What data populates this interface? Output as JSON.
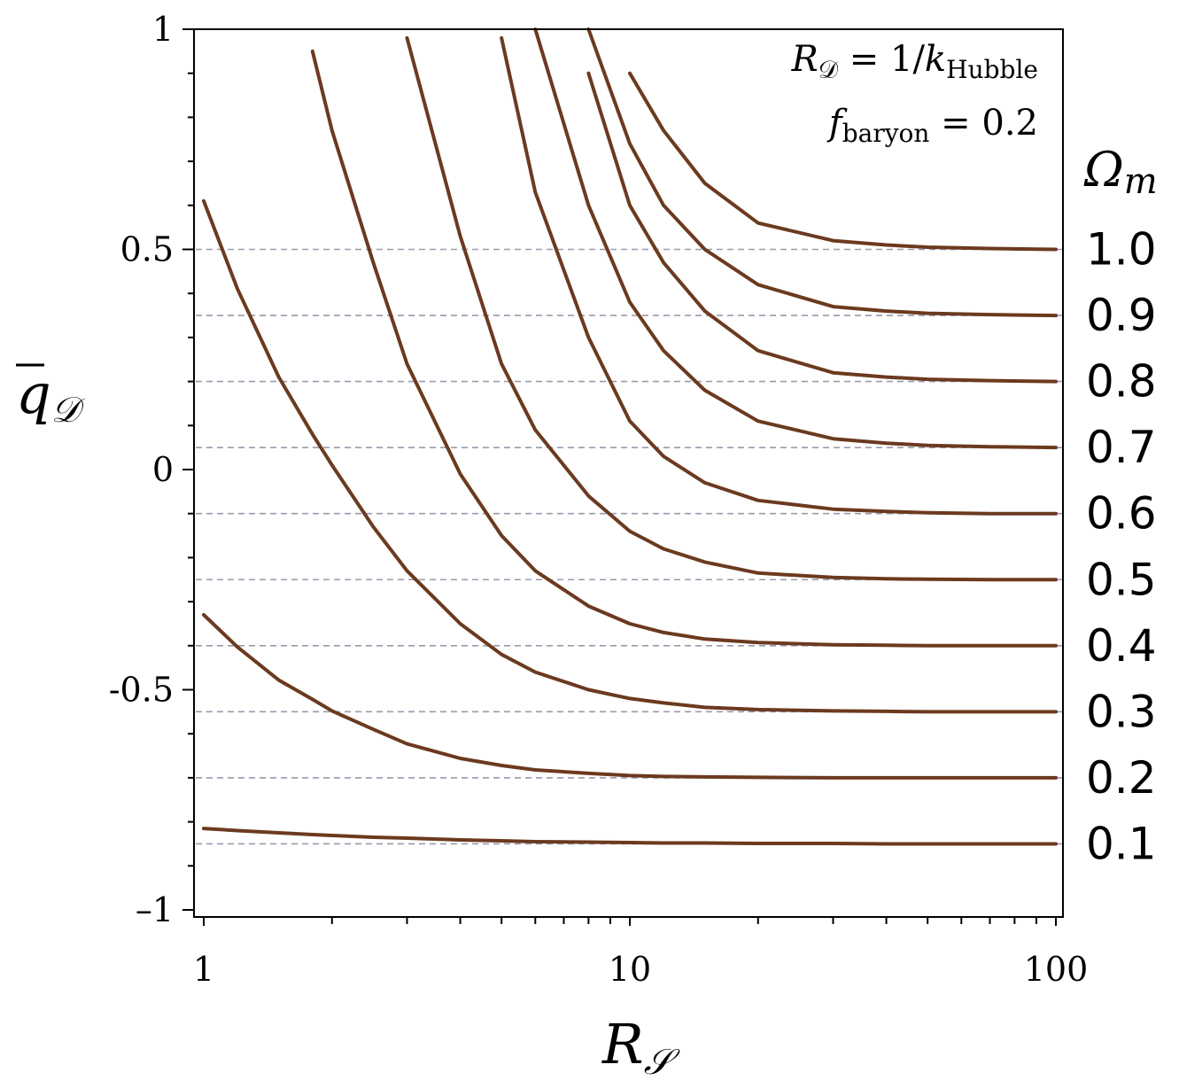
{
  "chart_data": {
    "type": "line",
    "xscale": "log",
    "xlim": [
      1,
      100
    ],
    "ylim": [
      -1,
      1
    ],
    "xlabel": "R_S",
    "ylabel": "q̄_D",
    "x_ticks": [
      "1",
      "10",
      "100"
    ],
    "y_ticks": [
      "1",
      "0.5",
      "0",
      "-0.5",
      "–1"
    ],
    "legend_title": "Ω_m",
    "annotations": {
      "line1": "R_D = 1/k_Hubble",
      "line2": "f_baryon = 0.2"
    },
    "line_color": "#6b3a1f",
    "reference_line_color": "#9a9aae",
    "grid": false,
    "x": [
      1,
      1.2,
      1.5,
      1.8,
      2,
      2.5,
      3,
      4,
      5,
      6,
      8,
      10,
      12,
      15,
      20,
      30,
      40,
      50,
      70,
      100
    ],
    "series": [
      {
        "name": "0.1",
        "asymptote": -0.85,
        "values": [
          -0.815,
          -0.82,
          -0.825,
          -0.829,
          -0.831,
          -0.835,
          -0.837,
          -0.841,
          -0.843,
          -0.845,
          -0.846,
          -0.847,
          -0.848,
          -0.848,
          -0.849,
          -0.849,
          -0.85,
          -0.85,
          -0.85,
          -0.85
        ]
      },
      {
        "name": "0.2",
        "asymptote": -0.7,
        "values": [
          -0.33,
          -0.403,
          -0.478,
          -0.522,
          -0.548,
          -0.59,
          -0.623,
          -0.656,
          -0.672,
          -0.682,
          -0.69,
          -0.695,
          -0.697,
          -0.698,
          -0.699,
          -0.7,
          -0.7,
          -0.7,
          -0.7,
          -0.7
        ]
      },
      {
        "name": "0.3",
        "asymptote": -0.55,
        "values": [
          0.61,
          0.41,
          0.21,
          0.08,
          0.01,
          -0.13,
          -0.23,
          -0.35,
          -0.42,
          -0.46,
          -0.5,
          -0.52,
          -0.53,
          -0.54,
          -0.545,
          -0.548,
          -0.549,
          -0.55,
          -0.55,
          -0.55
        ]
      },
      {
        "name": "0.4",
        "asymptote": -0.4,
        "values": [
          null,
          null,
          null,
          0.95,
          0.77,
          0.47,
          0.24,
          -0.01,
          -0.15,
          -0.23,
          -0.31,
          -0.35,
          -0.37,
          -0.385,
          -0.393,
          -0.398,
          -0.399,
          -0.4,
          -0.4,
          -0.4
        ]
      },
      {
        "name": "0.5",
        "asymptote": -0.25,
        "values": [
          null,
          null,
          null,
          null,
          null,
          null,
          0.98,
          0.53,
          0.24,
          0.09,
          -0.06,
          -0.14,
          -0.18,
          -0.21,
          -0.235,
          -0.245,
          -0.248,
          -0.249,
          -0.25,
          -0.25
        ]
      },
      {
        "name": "0.6",
        "asymptote": -0.1,
        "values": [
          null,
          null,
          null,
          null,
          null,
          null,
          null,
          null,
          0.98,
          0.63,
          0.3,
          0.11,
          0.03,
          -0.03,
          -0.07,
          -0.09,
          -0.095,
          -0.098,
          -0.1,
          -0.1
        ]
      },
      {
        "name": "0.7",
        "asymptote": 0.05,
        "values": [
          null,
          null,
          null,
          null,
          null,
          null,
          null,
          null,
          null,
          1.0,
          0.6,
          0.38,
          0.27,
          0.18,
          0.11,
          0.07,
          0.06,
          0.055,
          0.052,
          0.05
        ]
      },
      {
        "name": "0.8",
        "asymptote": 0.2,
        "values": [
          null,
          null,
          null,
          null,
          null,
          null,
          null,
          null,
          null,
          null,
          0.9,
          0.6,
          0.47,
          0.36,
          0.27,
          0.22,
          0.21,
          0.205,
          0.202,
          0.2
        ]
      },
      {
        "name": "0.9",
        "asymptote": 0.35,
        "values": [
          null,
          null,
          null,
          null,
          null,
          null,
          null,
          null,
          null,
          null,
          1.0,
          0.74,
          0.6,
          0.5,
          0.42,
          0.37,
          0.36,
          0.355,
          0.352,
          0.35
        ]
      },
      {
        "name": "1.0",
        "asymptote": 0.5,
        "values": [
          null,
          null,
          null,
          null,
          null,
          null,
          null,
          null,
          null,
          null,
          null,
          0.9,
          0.77,
          0.65,
          0.56,
          0.52,
          0.51,
          0.505,
          0.502,
          0.5
        ]
      }
    ]
  }
}
